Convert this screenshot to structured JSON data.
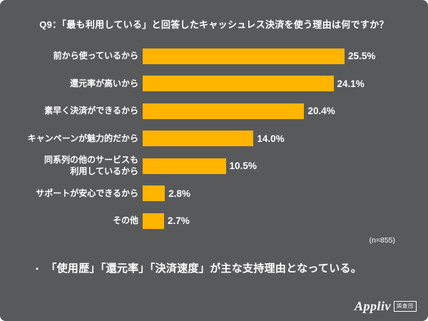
{
  "title": "Q9：「最も利用している」と回答したキャッシュレス決済を使う理由は何ですか？",
  "chart_data": {
    "type": "bar",
    "orientation": "horizontal",
    "title": "Q9：「最も利用している」と回答したキャッシュレス決済を使う理由は何ですか？",
    "categories": [
      "前から使っているから",
      "還元率が高いから",
      "素早く決済ができるから",
      "キャンペーンが魅力的だから",
      "同系列の他のサービスも\n利用しているから",
      "サポートが安心できるから",
      "その他"
    ],
    "values": [
      25.5,
      24.1,
      20.4,
      14.0,
      10.5,
      2.8,
      2.7
    ],
    "value_labels": [
      "25.5%",
      "24.1%",
      "20.4%",
      "14.0%",
      "10.5%",
      "2.8%",
      "2.7%"
    ],
    "xlim": [
      0,
      27
    ],
    "grid": false,
    "legend": "none",
    "bar_color": "#ffb400",
    "sample_note": "(n=855)"
  },
  "summary": {
    "bullet": "・",
    "text": "「使用歴」「還元率」「決済速度」が主な支持理由となっている。"
  },
  "footer": {
    "logo_word": "Appliv",
    "logo_badge": "調査団"
  },
  "colors": {
    "background": "#58595b",
    "bar": "#ffb400",
    "text": "#ffffff"
  }
}
